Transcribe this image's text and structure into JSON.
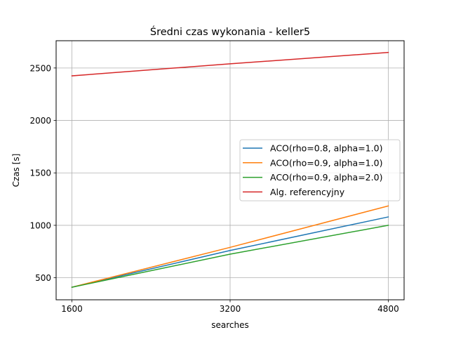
{
  "chart_data": {
    "type": "line",
    "title": "Średni czas wykonania - keller5",
    "xlabel": "searches",
    "ylabel": "Czas [s]",
    "x": [
      1600,
      3200,
      4800
    ],
    "x_ticks": [
      1600,
      3200,
      4800
    ],
    "y_ticks": [
      500,
      1000,
      1500,
      2000,
      2500
    ],
    "xlim": [
      1440,
      4960
    ],
    "ylim": [
      290,
      2760
    ],
    "grid": true,
    "legend_position": "center-right",
    "series": [
      {
        "name": "ACO(rho=0.8, alpha=1.0)",
        "color": "#1f77b4",
        "values": [
          410,
          760,
          1080
        ]
      },
      {
        "name": "ACO(rho=0.9, alpha=1.0)",
        "color": "#ff7f0e",
        "values": [
          410,
          790,
          1185
        ]
      },
      {
        "name": "ACO(rho=0.9, alpha=2.0)",
        "color": "#2ca02c",
        "values": [
          410,
          725,
          1000
        ]
      },
      {
        "name": "Alg. referencyjny",
        "color": "#d62728",
        "values": [
          2425,
          2540,
          2648
        ]
      }
    ]
  }
}
